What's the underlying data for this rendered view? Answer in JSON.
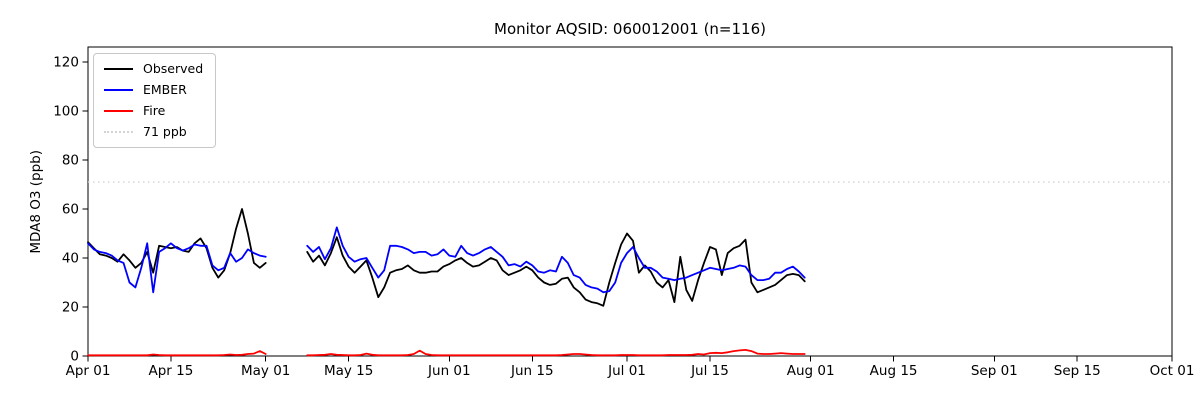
{
  "title": "Monitor AQSID: 060012001 (n=116)",
  "chart_data": {
    "type": "line",
    "title": "Monitor AQSID: 060012001 (n=116)",
    "xlabel": "",
    "ylabel": "MDA8 O3 (ppb)",
    "ylim": [
      0,
      126
    ],
    "yticks": [
      0,
      20,
      40,
      60,
      80,
      100,
      120
    ],
    "grid": false,
    "legend_position": "upper left",
    "x_axis": {
      "ticks": [
        {
          "label": "Apr 01",
          "day": 0
        },
        {
          "label": "Apr 15",
          "day": 14
        },
        {
          "label": "May 01",
          "day": 30
        },
        {
          "label": "May 15",
          "day": 44
        },
        {
          "label": "Jun 01",
          "day": 61
        },
        {
          "label": "Jun 15",
          "day": 75
        },
        {
          "label": "Jul 01",
          "day": 91
        },
        {
          "label": "Jul 15",
          "day": 105
        },
        {
          "label": "Aug 01",
          "day": 122
        },
        {
          "label": "Aug 15",
          "day": 136
        },
        {
          "label": "Sep 01",
          "day": 153
        },
        {
          "label": "Sep 15",
          "day": 167
        },
        {
          "label": "Oct 01",
          "day": 183
        }
      ],
      "span_days": 183
    },
    "threshold": {
      "value": 71,
      "label": "71 ppb",
      "color": "#d3d3d3",
      "style": "dotted"
    },
    "dates": [
      "Apr 01",
      "Apr 02",
      "Apr 03",
      "Apr 04",
      "Apr 05",
      "Apr 06",
      "Apr 07",
      "Apr 08",
      "Apr 09",
      "Apr 10",
      "Apr 11",
      "Apr 12",
      "Apr 13",
      "Apr 14",
      "Apr 15",
      "Apr 16",
      "Apr 17",
      "Apr 18",
      "Apr 19",
      "Apr 20",
      "Apr 21",
      "Apr 22",
      "Apr 23",
      "Apr 24",
      "Apr 25",
      "Apr 26",
      "Apr 27",
      "Apr 28",
      "Apr 29",
      "Apr 30",
      "May 01",
      "May 02",
      "May 03",
      "May 04",
      "May 05",
      "May 06",
      "May 07",
      "May 08",
      "May 09",
      "May 10",
      "May 11",
      "May 12",
      "May 13",
      "May 14",
      "May 15",
      "May 16",
      "May 17",
      "May 18",
      "May 19",
      "May 20",
      "May 21",
      "May 22",
      "May 23",
      "May 24",
      "May 25",
      "May 26",
      "May 27",
      "May 28",
      "May 29",
      "May 30",
      "May 31",
      "Jun 01",
      "Jun 02",
      "Jun 03",
      "Jun 04",
      "Jun 05",
      "Jun 06",
      "Jun 07",
      "Jun 08",
      "Jun 09",
      "Jun 10",
      "Jun 11",
      "Jun 12",
      "Jun 13",
      "Jun 14",
      "Jun 15",
      "Jun 16",
      "Jun 17",
      "Jun 18",
      "Jun 19",
      "Jun 20",
      "Jun 21",
      "Jun 22",
      "Jun 23",
      "Jun 24",
      "Jun 25",
      "Jun 26",
      "Jun 27",
      "Jun 28",
      "Jun 29",
      "Jun 30",
      "Jul 01",
      "Jul 02",
      "Jul 03",
      "Jul 04",
      "Jul 05",
      "Jul 06",
      "Jul 07",
      "Jul 08",
      "Jul 09",
      "Jul 10",
      "Jul 11",
      "Jul 12",
      "Jul 13",
      "Jul 14",
      "Jul 15",
      "Jul 16",
      "Jul 17",
      "Jul 18",
      "Jul 19",
      "Jul 20",
      "Jul 21",
      "Jul 22",
      "Jul 23",
      "Jul 24",
      "Jul 25",
      "Jul 26",
      "Jul 27",
      "Jul 28",
      "Jul 29",
      "Jul 30",
      "Jul 31"
    ],
    "series": [
      {
        "name": "Observed",
        "color": "#000000",
        "values": [
          46.5,
          44,
          41.5,
          41,
          40,
          38.5,
          41.5,
          39,
          36,
          38,
          42.5,
          34,
          45,
          44.5,
          44,
          44.5,
          43,
          42.5,
          46,
          48,
          44,
          36,
          32,
          35,
          42,
          52,
          60,
          50,
          38,
          36,
          38,
          null,
          null,
          null,
          null,
          null,
          null,
          42.5,
          38.5,
          41,
          37,
          42,
          48.5,
          41,
          36.5,
          34,
          36.5,
          39,
          32,
          24,
          28,
          34,
          35,
          35.5,
          37,
          35,
          34,
          34,
          34.5,
          34.5,
          36.5,
          37.5,
          39,
          40,
          38,
          36.5,
          37,
          38.5,
          40,
          39,
          35,
          33,
          34,
          35,
          36.5,
          35,
          32,
          30,
          29,
          29.5,
          31.5,
          32,
          28,
          26,
          23,
          22,
          21.5,
          20.5,
          30,
          38,
          45.5,
          50,
          47,
          34,
          37,
          34.5,
          30,
          28,
          31,
          22,
          40.5,
          27,
          22.5,
          31,
          38,
          44.5,
          43.5,
          33,
          42,
          44,
          45,
          47.5,
          30,
          26,
          27,
          28,
          29,
          31,
          33,
          33.5,
          33,
          30.5
        ]
      },
      {
        "name": "EMBER",
        "color": "#0000ff",
        "values": [
          46,
          43.5,
          42.5,
          42,
          41,
          39,
          38,
          30,
          28,
          36,
          46,
          26,
          42.5,
          44,
          46,
          44,
          43,
          44,
          45.5,
          45,
          45,
          37,
          35,
          36,
          42,
          38.5,
          40,
          43.5,
          42,
          41,
          40.5,
          null,
          null,
          null,
          null,
          null,
          null,
          45,
          42.5,
          44.5,
          39.5,
          44,
          52.5,
          45,
          40.5,
          38.5,
          39.5,
          40,
          36,
          32,
          35,
          45,
          45,
          44.5,
          43.5,
          42,
          42.5,
          42.5,
          41,
          41.5,
          43.5,
          41,
          40.5,
          45,
          42,
          41,
          42,
          43.5,
          44.5,
          42.5,
          40.5,
          37,
          37.5,
          36.5,
          38.5,
          37,
          34.5,
          34,
          35,
          34.5,
          40.5,
          38,
          33,
          32,
          29,
          28,
          27.5,
          26,
          26.5,
          30,
          38,
          42,
          44.5,
          40,
          36,
          36,
          34.5,
          32,
          31.5,
          31,
          31.5,
          32,
          33,
          34,
          35,
          36,
          35.5,
          35,
          35.5,
          36,
          37,
          36.5,
          33,
          31,
          31,
          31.5,
          34,
          34,
          35.5,
          36.5,
          34.5,
          32
        ]
      },
      {
        "name": "Fire",
        "color": "#ff0000",
        "values": [
          0.3,
          0.3,
          0.3,
          0.3,
          0.3,
          0.3,
          0.3,
          0.3,
          0.3,
          0.3,
          0.3,
          0.6,
          0.4,
          0.3,
          0.3,
          0.3,
          0.3,
          0.3,
          0.3,
          0.3,
          0.3,
          0.3,
          0.3,
          0.4,
          0.6,
          0.4,
          0.5,
          0.8,
          1,
          2,
          0.8,
          null,
          null,
          null,
          null,
          null,
          null,
          0.3,
          0.3,
          0.4,
          0.5,
          0.8,
          0.5,
          0.4,
          0.3,
          0.3,
          0.4,
          1,
          0.5,
          0.3,
          0.3,
          0.3,
          0.3,
          0.3,
          0.4,
          0.8,
          2.2,
          0.8,
          0.4,
          0.3,
          0.3,
          0.3,
          0.3,
          0.3,
          0.3,
          0.3,
          0.3,
          0.3,
          0.3,
          0.3,
          0.3,
          0.3,
          0.3,
          0.3,
          0.3,
          0.3,
          0.3,
          0.3,
          0.3,
          0.3,
          0.4,
          0.6,
          0.8,
          0.8,
          0.6,
          0.4,
          0.3,
          0.3,
          0.3,
          0.3,
          0.4,
          0.4,
          0.4,
          0.3,
          0.3,
          0.3,
          0.3,
          0.3,
          0.4,
          0.4,
          0.4,
          0.4,
          0.5,
          0.8,
          0.6,
          1.2,
          1.3,
          1.2,
          1.5,
          2,
          2.3,
          2.5,
          2,
          1,
          0.8,
          0.8,
          1,
          1.2,
          1,
          0.8,
          0.8,
          0.8
        ]
      }
    ]
  }
}
